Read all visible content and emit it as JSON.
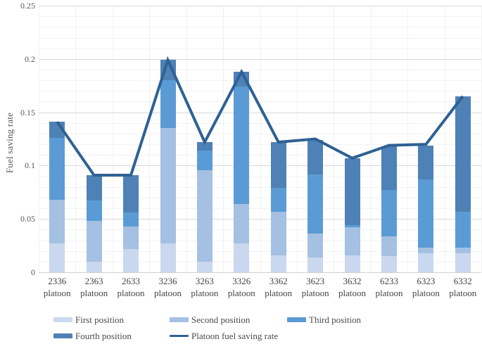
{
  "y_axis": {
    "title": "Fuel saving rate",
    "tick_labels": [
      "0",
      "0.05",
      "0.1",
      "0.15",
      "0.2",
      "0.25"
    ]
  },
  "x_axis": {
    "category_suffix": "platoon"
  },
  "chart_data": {
    "type": "bar",
    "subtype": "stacked-bars-with-line-overlay",
    "title": "",
    "xlabel": "",
    "ylabel": "Fuel saving rate",
    "ylim": [
      0,
      0.25
    ],
    "y_major_ticks": [
      0,
      0.05,
      0.1,
      0.15,
      0.2,
      0.25
    ],
    "y_tick_labels": [
      "0",
      "0.05",
      "0.1",
      "0.15",
      "0.2",
      "0.25"
    ],
    "y_minor_step": 0.01,
    "grid": "horizontal-major-and-minor, faint vertical category lines",
    "legend_position": "bottom, two rows",
    "categories": [
      "2336",
      "2363",
      "2633",
      "3236",
      "3263",
      "3326",
      "3362",
      "3623",
      "3632",
      "6233",
      "6323",
      "6332"
    ],
    "series": [
      {
        "name": "First position",
        "color": "#c9d8ef",
        "values": [
          0.027,
          0.01,
          0.022,
          0.027,
          0.01,
          0.027,
          0.016,
          0.014,
          0.016,
          0.015,
          0.018,
          0.018
        ]
      },
      {
        "name": "Second position",
        "color": "#a4c0e2",
        "values": [
          0.041,
          0.038,
          0.021,
          0.108,
          0.086,
          0.037,
          0.041,
          0.022,
          0.026,
          0.019,
          0.005,
          0.005
        ]
      },
      {
        "name": "Third position",
        "color": "#5b9bd5",
        "values": [
          0.058,
          0.019,
          0.013,
          0.045,
          0.018,
          0.11,
          0.022,
          0.056,
          0.002,
          0.043,
          0.064,
          0.034
        ]
      },
      {
        "name": "Fourth position",
        "color": "#4e81b5",
        "values": [
          0.015,
          0.024,
          0.035,
          0.019,
          0.008,
          0.014,
          0.043,
          0.032,
          0.063,
          0.041,
          0.032,
          0.108
        ]
      }
    ],
    "line_series": {
      "name": "Platoon fuel saving rate",
      "color": "#2f6194",
      "values": [
        0.141,
        0.091,
        0.091,
        0.199,
        0.122,
        0.188,
        0.122,
        0.125,
        0.107,
        0.119,
        0.12,
        0.165
      ]
    }
  }
}
